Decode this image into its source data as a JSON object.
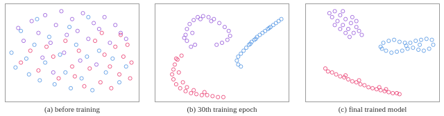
{
  "chart_data": [
    {
      "type": "scatter",
      "title": "(a) before training",
      "xlim": [
        0,
        100
      ],
      "ylim": [
        0,
        100
      ],
      "tick_labels": false,
      "grid": false,
      "marker": "open_circle",
      "series": [
        {
          "color": "#9050d8",
          "x": [
            10,
            14,
            20,
            25,
            30,
            34,
            38,
            42,
            46,
            50,
            54,
            58,
            62,
            66,
            70,
            74,
            78,
            82,
            86,
            90,
            44,
            56,
            28,
            68,
            36
          ],
          "y": [
            75,
            62,
            82,
            70,
            88,
            60,
            78,
            92,
            68,
            84,
            72,
            90,
            64,
            80,
            74,
            86,
            60,
            78,
            70,
            64,
            50,
            42,
            45,
            38,
            30
          ]
        },
        {
          "color": "#4a90e2",
          "x": [
            5,
            8,
            12,
            16,
            18,
            22,
            26,
            30,
            33,
            37,
            41,
            45,
            49,
            53,
            57,
            61,
            65,
            70,
            75,
            80,
            85,
            90,
            24,
            48,
            62
          ],
          "y": [
            50,
            35,
            72,
            44,
            28,
            58,
            22,
            40,
            66,
            18,
            48,
            30,
            14,
            58,
            24,
            46,
            12,
            52,
            30,
            44,
            20,
            36,
            84,
            76,
            86
          ]
        },
        {
          "color": "#e8336a",
          "x": [
            12,
            19,
            25,
            31,
            36,
            40,
            45,
            50,
            55,
            59,
            63,
            67,
            71,
            74,
            78,
            82,
            85,
            88,
            91,
            94,
            79,
            86,
            93,
            72,
            52
          ],
          "y": [
            40,
            52,
            32,
            56,
            46,
            24,
            62,
            36,
            52,
            16,
            34,
            62,
            20,
            48,
            36,
            56,
            28,
            46,
            58,
            40,
            14,
            68,
            24,
            70,
            26
          ]
        }
      ]
    },
    {
      "type": "scatter",
      "title": "(b) 30th training epoch",
      "xlim": [
        0,
        100
      ],
      "ylim": [
        0,
        100
      ],
      "tick_labels": false,
      "grid": false,
      "marker": "open_circle",
      "series": [
        {
          "color": "#9050d8",
          "x": [
            24,
            23,
            24,
            26,
            29,
            32,
            36,
            40,
            44,
            48,
            52,
            55,
            56,
            54,
            50,
            46,
            30,
            27,
            34,
            42,
            28,
            22
          ],
          "y": [
            62,
            68,
            74,
            79,
            83,
            86,
            87,
            86,
            84,
            80,
            76,
            72,
            67,
            63,
            60,
            58,
            58,
            56,
            84,
            82,
            70,
            65
          ]
        },
        {
          "color": "#4a90e2",
          "x": [
            62,
            61,
            62,
            64,
            66,
            68,
            70,
            72,
            74,
            76,
            78,
            80,
            82,
            84,
            86,
            88,
            90,
            92,
            94,
            64,
            75,
            85,
            71
          ],
          "y": [
            38,
            42,
            46,
            49,
            52,
            55,
            58,
            61,
            63,
            66,
            68,
            70,
            72,
            74,
            76,
            78,
            80,
            82,
            84,
            36,
            64,
            75,
            59
          ]
        },
        {
          "color": "#e8336a",
          "x": [
            20,
            17,
            15,
            14,
            13,
            14,
            16,
            19,
            23,
            27,
            31,
            35,
            39,
            43,
            47,
            51,
            18,
            21,
            29,
            37,
            16,
            24
          ],
          "y": [
            47,
            43,
            38,
            33,
            28,
            23,
            18,
            14,
            11,
            9,
            8,
            7,
            7,
            6,
            5,
            5,
            30,
            20,
            12,
            10,
            44,
            15
          ]
        }
      ]
    },
    {
      "type": "scatter",
      "title": "(c) final trained model",
      "xlim": [
        0,
        100
      ],
      "ylim": [
        0,
        100
      ],
      "tick_labels": false,
      "grid": false,
      "marker": "open_circle",
      "series": [
        {
          "color": "#9050d8",
          "x": [
            18,
            20,
            22,
            24,
            26,
            28,
            30,
            32,
            34,
            36,
            38,
            40,
            42,
            26,
            30,
            22,
            35,
            28,
            33,
            38
          ],
          "y": [
            90,
            86,
            92,
            82,
            88,
            78,
            84,
            74,
            80,
            70,
            76,
            72,
            68,
            74,
            70,
            78,
            86,
            92,
            66,
            82
          ]
        },
        {
          "color": "#4a90e2",
          "x": [
            56,
            58,
            62,
            66,
            70,
            74,
            78,
            82,
            86,
            90,
            94,
            95,
            92,
            88,
            84,
            80,
            76,
            72,
            68,
            64,
            60,
            57,
            75,
            85
          ],
          "y": [
            56,
            60,
            62,
            63,
            61,
            60,
            60,
            62,
            63,
            64,
            63,
            58,
            54,
            52,
            53,
            55,
            54,
            52,
            51,
            50,
            52,
            54,
            57,
            58
          ]
        },
        {
          "color": "#e8336a",
          "x": [
            15,
            17,
            20,
            23,
            26,
            29,
            32,
            35,
            38,
            41,
            44,
            47,
            50,
            53,
            56,
            59,
            62,
            65,
            68,
            70,
            40,
            55,
            30,
            60
          ],
          "y": [
            34,
            31,
            30,
            28,
            26,
            25,
            23,
            21,
            20,
            18,
            17,
            15,
            14,
            13,
            12,
            11,
            10,
            9,
            9,
            8,
            22,
            15,
            27,
            13
          ]
        }
      ]
    }
  ]
}
